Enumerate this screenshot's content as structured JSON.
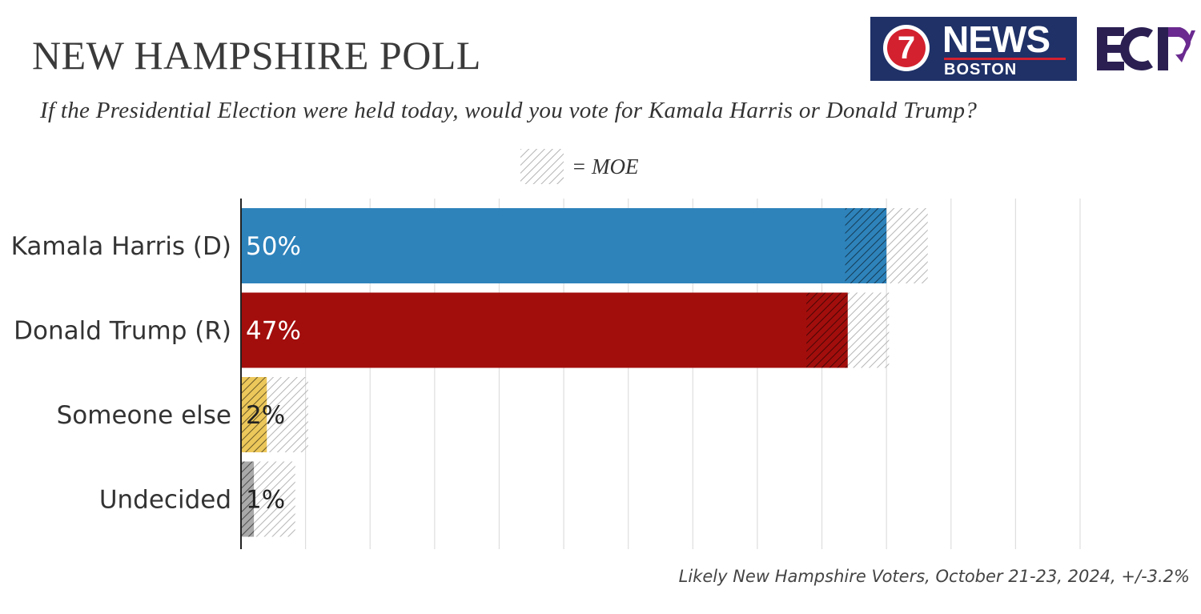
{
  "header": {
    "title": "NEW HAMPSHIRE POLL",
    "question": "If the Presidential Election were held today, would you vote for Kamala Harris or Donald Trump?",
    "moe_legend": "= MOE"
  },
  "logos": {
    "news_number": "7",
    "news_word": "NEWS",
    "news_city": "BOSTON",
    "ecp": "ECP"
  },
  "footnote": "Likely New Hampshire Voters, October 21-23, 2024, +/-3.2%",
  "colors": {
    "harris": "#2e83bb",
    "trump": "#a20e0c",
    "someone_else": "#ecc75a",
    "undecided": "#a9a9a9",
    "news_logo_bg": "#1f3167",
    "news_logo_red": "#d3212f",
    "ecp_navy": "#2b1f52",
    "ecp_purple": "#6a2a8f"
  },
  "chart_data": {
    "type": "bar",
    "orientation": "horizontal",
    "categories": [
      "Kamala Harris (D)",
      "Donald Trump (R)",
      "Someone else",
      "Undecided"
    ],
    "values": [
      50,
      47,
      2,
      1
    ],
    "value_labels": [
      "50%",
      "47%",
      "2%",
      "1%"
    ],
    "moe": 3.2,
    "bar_colors": [
      "#2e83bb",
      "#a20e0c",
      "#ecc75a",
      "#a9a9a9"
    ],
    "label_colors": [
      "#ffffff",
      "#ffffff",
      "#222222",
      "#222222"
    ],
    "xlim": [
      0,
      65
    ],
    "grid_step": 5,
    "grid": true,
    "legend": "top-center"
  }
}
